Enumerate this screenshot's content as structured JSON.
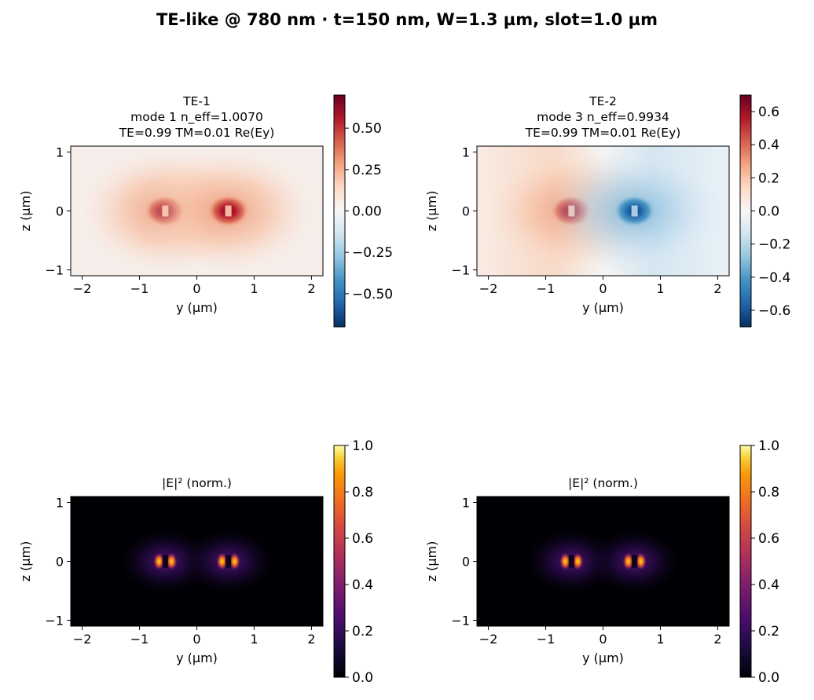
{
  "figure": {
    "title": "TE-like @ 780 nm · t=150 nm, W=1.3 µm, slot=1.0 µm"
  },
  "colors": {
    "axis": "#000000",
    "background": "#ffffff"
  },
  "chart_data": [
    {
      "type": "heatmap",
      "id": "te1_field",
      "title_lines": [
        "TE-1",
        "mode 1  n_eff=1.0070",
        "TE=0.99  TM=0.01  Re(Ey)"
      ],
      "xlabel": "y (µm)",
      "ylabel": "z (µm)",
      "xlim": [
        -2.2,
        2.2
      ],
      "ylim": [
        -1.1,
        1.1
      ],
      "xticks": [
        -2,
        -1,
        0,
        1,
        2
      ],
      "xtick_labels": [
        "−2",
        "−1",
        "0",
        "1",
        "2"
      ],
      "yticks": [
        -1,
        0,
        1
      ],
      "ytick_labels": [
        "−1",
        "0",
        "1"
      ],
      "colormap": "RdBu_r",
      "clim": [
        -0.7,
        0.7
      ],
      "colorbar_ticks": [
        -0.5,
        -0.25,
        0,
        0.25,
        0.5
      ],
      "colorbar_tick_labels": [
        "−0.50",
        "−0.25",
        "0.00",
        "0.25",
        "0.50"
      ],
      "field": "Re(Ey)",
      "mode_index": 1,
      "n_eff": 1.007,
      "te_fraction": 0.99,
      "tm_fraction": 0.01,
      "waveguide_cores_y": [
        -0.55,
        0.55
      ],
      "core_signs": [
        1,
        1
      ]
    },
    {
      "type": "heatmap",
      "id": "te2_field",
      "title_lines": [
        "TE-2",
        "mode 3  n_eff=0.9934",
        "TE=0.99  TM=0.01  Re(Ey)"
      ],
      "xlabel": "y (µm)",
      "ylabel": "z (µm)",
      "xlim": [
        -2.2,
        2.2
      ],
      "ylim": [
        -1.1,
        1.1
      ],
      "xticks": [
        -2,
        -1,
        0,
        1,
        2
      ],
      "xtick_labels": [
        "−2",
        "−1",
        "0",
        "1",
        "2"
      ],
      "yticks": [
        -1,
        0,
        1
      ],
      "ytick_labels": [
        "−1",
        "0",
        "1"
      ],
      "colormap": "RdBu_r",
      "clim": [
        -0.7,
        0.7
      ],
      "colorbar_ticks": [
        -0.6,
        -0.4,
        -0.2,
        0,
        0.2,
        0.4,
        0.6
      ],
      "colorbar_tick_labels": [
        "−0.6",
        "−0.4",
        "−0.2",
        "0.0",
        "0.2",
        "0.4",
        "0.6"
      ],
      "field": "Re(Ey)",
      "mode_index": 3,
      "n_eff": 0.9934,
      "te_fraction": 0.99,
      "tm_fraction": 0.01,
      "waveguide_cores_y": [
        -0.55,
        0.55
      ],
      "core_signs": [
        1,
        -1
      ]
    },
    {
      "type": "heatmap",
      "id": "te1_intensity",
      "title_lines": [
        "|E|² (norm.)"
      ],
      "xlabel": "y (µm)",
      "ylabel": "z (µm)",
      "xlim": [
        -2.2,
        2.2
      ],
      "ylim": [
        -1.1,
        1.1
      ],
      "xticks": [
        -2,
        -1,
        0,
        1,
        2
      ],
      "xtick_labels": [
        "−2",
        "−1",
        "0",
        "1",
        "2"
      ],
      "yticks": [
        -1,
        0,
        1
      ],
      "ytick_labels": [
        "−1",
        "0",
        "1"
      ],
      "colormap": "inferno",
      "clim": [
        0,
        1
      ],
      "colorbar_ticks": [
        0,
        0.2,
        0.4,
        0.6,
        0.8,
        1.0
      ],
      "colorbar_tick_labels": [
        "0.0",
        "0.2",
        "0.4",
        "0.6",
        "0.8",
        "1.0"
      ],
      "field": "|E|^2 normalized",
      "waveguide_cores_y": [
        -0.55,
        0.55
      ]
    },
    {
      "type": "heatmap",
      "id": "te2_intensity",
      "title_lines": [
        "|E|² (norm.)"
      ],
      "xlabel": "y (µm)",
      "ylabel": "z (µm)",
      "xlim": [
        -2.2,
        2.2
      ],
      "ylim": [
        -1.1,
        1.1
      ],
      "xticks": [
        -2,
        -1,
        0,
        1,
        2
      ],
      "xtick_labels": [
        "−2",
        "−1",
        "0",
        "1",
        "2"
      ],
      "yticks": [
        -1,
        0,
        1
      ],
      "ytick_labels": [
        "−1",
        "0",
        "1"
      ],
      "colormap": "inferno",
      "clim": [
        0,
        1
      ],
      "colorbar_ticks": [
        0,
        0.2,
        0.4,
        0.6,
        0.8,
        1.0
      ],
      "colorbar_tick_labels": [
        "0.0",
        "0.2",
        "0.4",
        "0.6",
        "0.8",
        "1.0"
      ],
      "field": "|E|^2 normalized",
      "waveguide_cores_y": [
        -0.55,
        0.55
      ]
    }
  ]
}
